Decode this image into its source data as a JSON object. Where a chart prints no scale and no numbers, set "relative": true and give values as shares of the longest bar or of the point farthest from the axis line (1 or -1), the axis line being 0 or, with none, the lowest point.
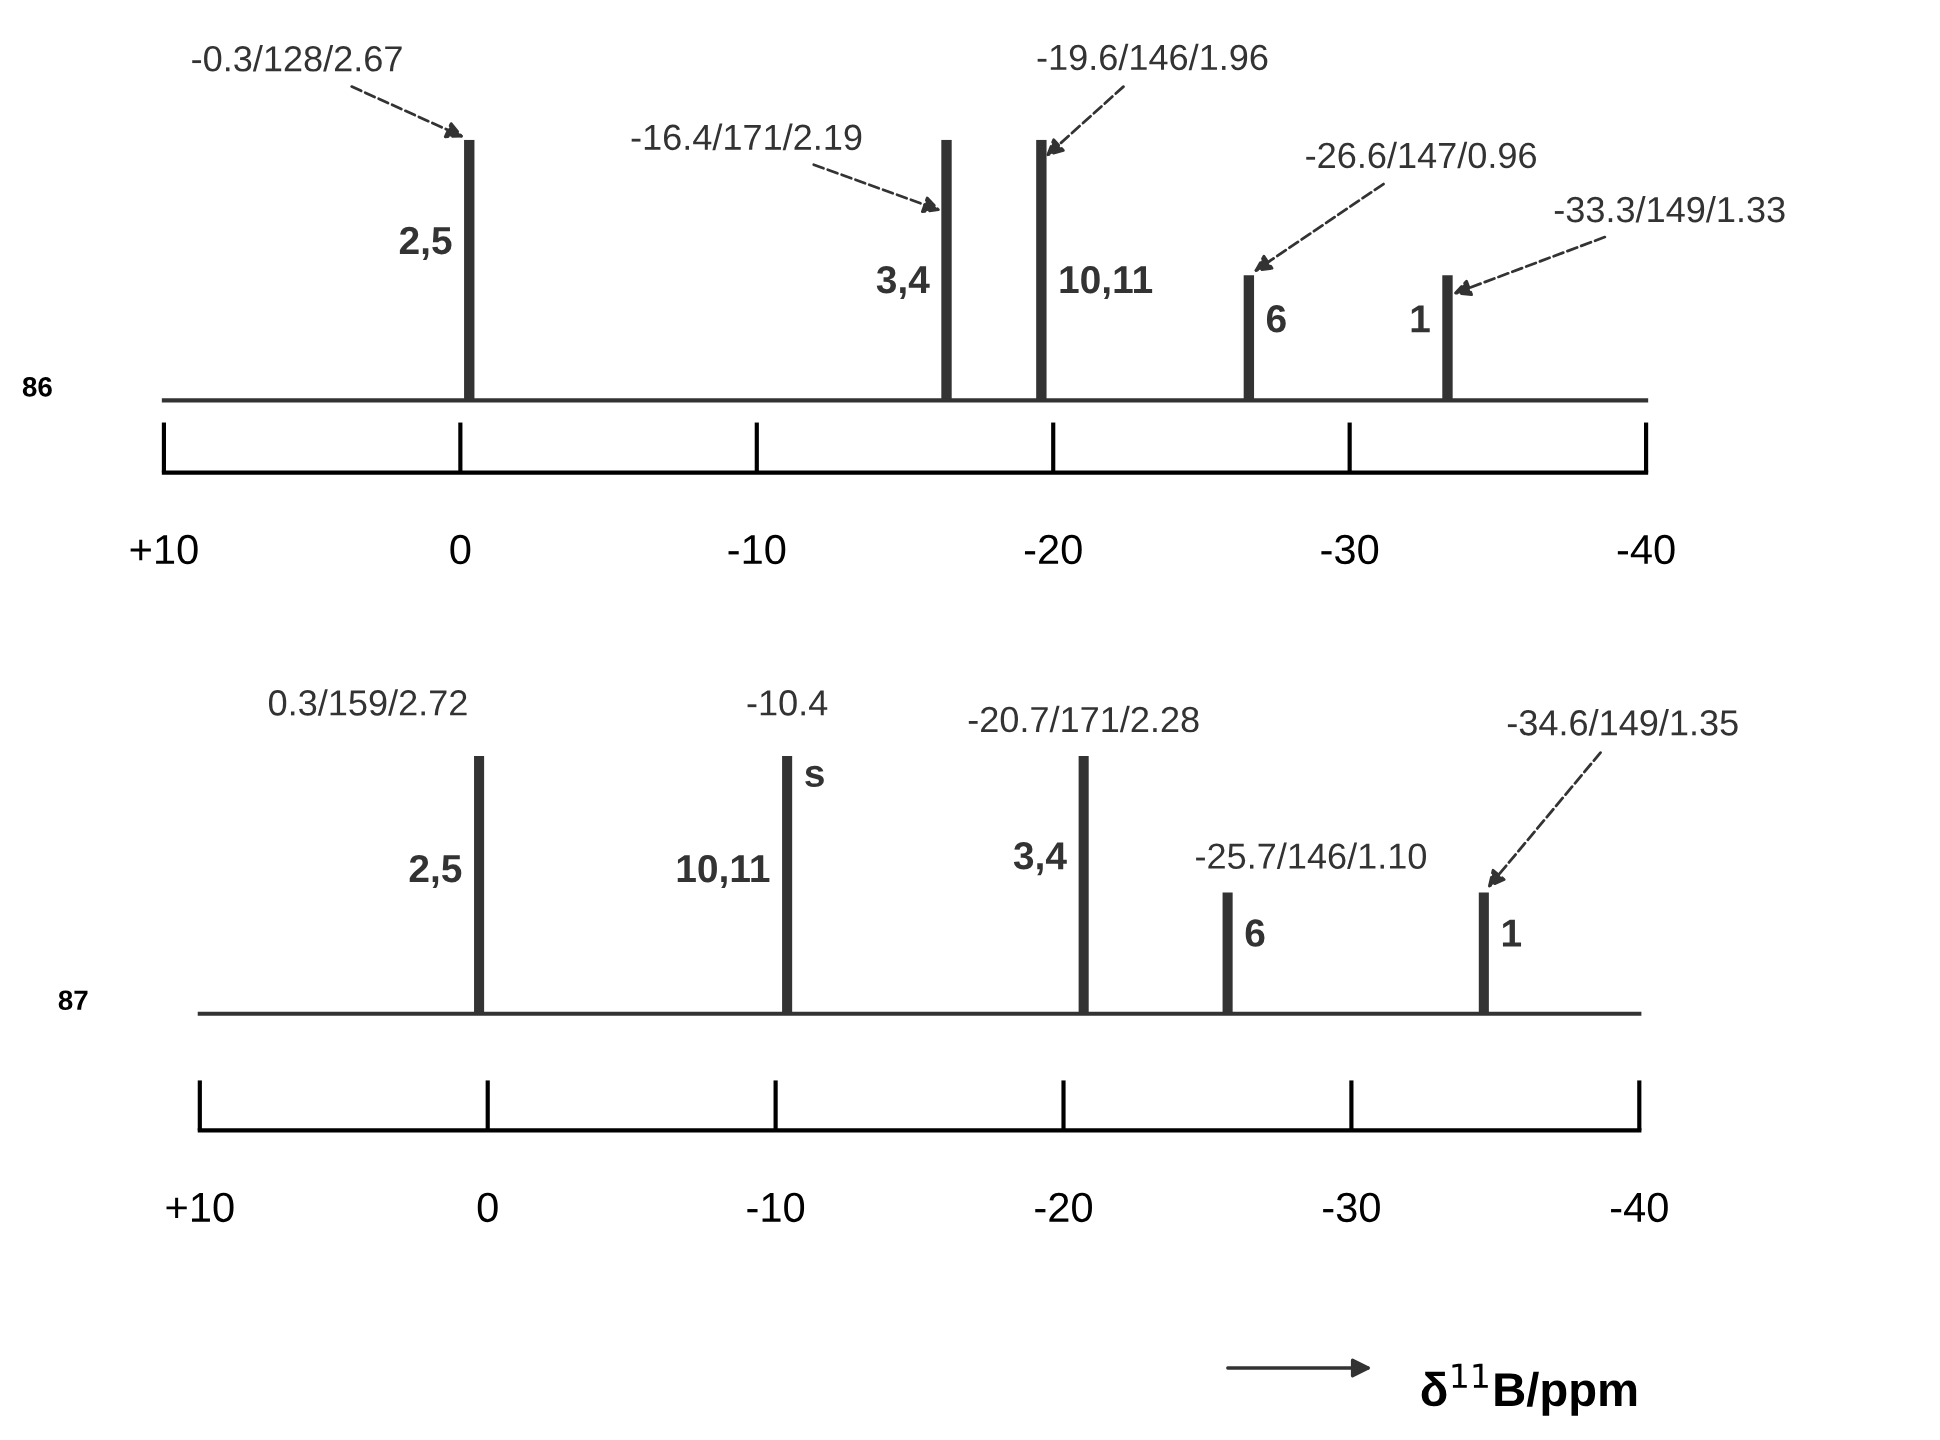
{
  "chart_data": [
    {
      "type": "bar",
      "relative": true,
      "x": [
        -0.3,
        -16.4,
        -19.6,
        -26.6,
        -33.3
      ],
      "values": [
        1.0,
        1.0,
        1.0,
        0.48,
        0.48
      ],
      "color": "#333333",
      "xlim": [
        10,
        -40
      ],
      "xticks": [
        {
          "value": 10,
          "label": "+10"
        },
        0,
        -10,
        -20,
        -30,
        -40
      ],
      "tick_labels": "x",
      "grid": false,
      "legend": false,
      "annotations": [
        "86",
        {
          "text": "-0.3/128/2.67",
          "x": -0.3,
          "y": 1.0
        },
        {
          "text": "-16.4/171/2.19",
          "x": -16.4,
          "y": 0.72
        },
        {
          "text": "-19.6/146/1.96",
          "x": -19.6,
          "y": 0.92
        },
        {
          "text": "-26.6/147/0.96",
          "x": -26.6,
          "y": 0.48
        },
        {
          "text": "-33.3/149/1.33",
          "x": -33.3,
          "y": 0.4
        },
        {
          "text": "2,5",
          "x": -0.3,
          "y": 0.6
        },
        {
          "text": "3,4",
          "x": -16.4,
          "y": 0.45
        },
        {
          "text": "10,11",
          "x": -19.6,
          "y": 0.45
        },
        {
          "text": "6",
          "x": -26.6,
          "y": 0.3
        },
        {
          "text": "1",
          "x": -33.3,
          "y": 0.3
        }
      ]
    },
    {
      "type": "bar",
      "relative": true,
      "x": [
        0.3,
        -10.4,
        -20.7,
        -25.7,
        -34.6
      ],
      "values": [
        1.0,
        1.0,
        1.0,
        0.47,
        0.47
      ],
      "color": "#333333",
      "xlim": [
        10,
        -40
      ],
      "xticks": [
        {
          "value": 10,
          "label": "+10"
        },
        0,
        -10,
        -20,
        -30,
        -40
      ],
      "tick_labels": "x",
      "grid": false,
      "legend": false,
      "xlabel": "δ$^{11}$B/ppm",
      "annotations": [
        "87",
        {
          "text": "0.3/159/2.72",
          "x": 0.3,
          "y": 1.0
        },
        {
          "text": "-10.4",
          "x": -10.4,
          "y": 1.0
        },
        {
          "text": "-20.7/171/2.28",
          "x": -20.7,
          "y": 1.0
        },
        {
          "text": "-25.7/146/1.10",
          "x": -25.7,
          "y": 0.47
        },
        {
          "text": "-34.6/149/1.35",
          "x": -34.6,
          "y": 0.47
        },
        {
          "text": "2,5",
          "x": 0.3,
          "y": 0.55
        },
        {
          "text": "10,11",
          "x": -10.4,
          "y": 0.55
        },
        {
          "text": "s",
          "x": -10.4,
          "y": 0.92
        },
        {
          "text": "3,4",
          "x": -20.7,
          "y": 0.6
        },
        {
          "text": "6",
          "x": -25.7,
          "y": 0.3
        },
        {
          "text": "1",
          "x": -34.6,
          "y": 0.3
        }
      ]
    }
  ]
}
